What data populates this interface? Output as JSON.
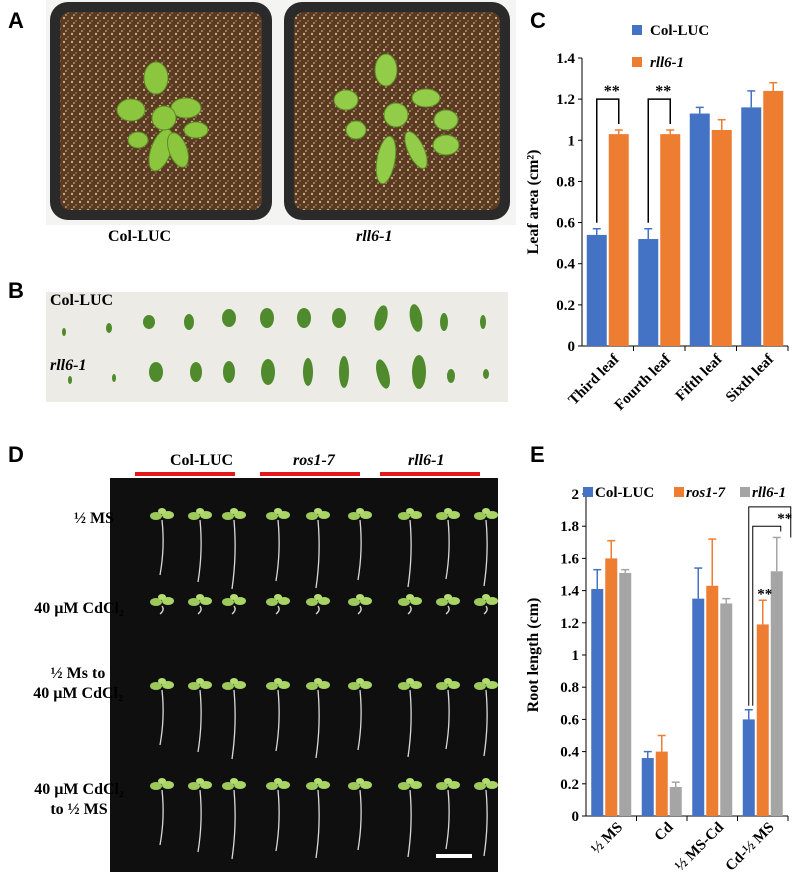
{
  "figure": {
    "panels": {
      "A": "A",
      "B": "B",
      "C": "C",
      "D": "D",
      "E": "E"
    },
    "panel_a": {
      "labels": [
        "Col-LUC",
        "rll6-1"
      ]
    },
    "panel_b": {
      "row_labels": [
        "Col-LUC",
        "rll6-1"
      ]
    },
    "panel_d": {
      "column_groups": [
        "Col-LUC",
        "ros1-7",
        "rll6-1"
      ],
      "row_labels": [
        [
          "½ MS"
        ],
        [
          "40 µM CdCl₂"
        ],
        [
          "½ Ms to",
          "40 µM CdCl₂"
        ],
        [
          "40 µM CdCl₂",
          "to ½ MS"
        ]
      ]
    }
  },
  "chart_data": [
    {
      "panel": "C",
      "type": "bar",
      "categories": [
        "Third leaf",
        "Fourth leaf",
        "Fifth leaf",
        "Sixth leaf"
      ],
      "series": [
        {
          "name": "Col-LUC",
          "color": "#4472c4",
          "values": [
            0.54,
            0.52,
            1.13,
            1.16
          ],
          "errors": [
            0.03,
            0.05,
            0.03,
            0.08
          ]
        },
        {
          "name": "rll6-1",
          "color": "#ed7d31",
          "values": [
            1.03,
            1.03,
            1.05,
            1.24
          ],
          "errors": [
            0.02,
            0.02,
            0.05,
            0.04
          ]
        }
      ],
      "ylabel": "Leaf area (cm²)",
      "ylim": [
        0,
        1.4
      ],
      "yticks": [
        "0",
        "0.2",
        "0.4",
        "0.6",
        "0.8",
        "1",
        "1.2",
        "1.4"
      ],
      "legend": "top-right",
      "annotations": [
        {
          "category": "Third leaf",
          "text": "**"
        },
        {
          "category": "Fourth leaf",
          "text": "**"
        }
      ]
    },
    {
      "panel": "E",
      "type": "bar",
      "categories": [
        "½ MS",
        "Cd",
        "½ MS-Cd",
        "Cd-½ MS"
      ],
      "series": [
        {
          "name": "Col-LUC",
          "color": "#4472c4",
          "values": [
            1.41,
            0.36,
            1.35,
            0.6
          ],
          "errors": [
            0.12,
            0.04,
            0.19,
            0.06
          ]
        },
        {
          "name": "ros1-7",
          "color": "#ed7d31",
          "values": [
            1.6,
            0.4,
            1.43,
            1.19
          ],
          "errors": [
            0.11,
            0.1,
            0.29,
            0.15
          ]
        },
        {
          "name": "rll6-1",
          "color": "#a5a5a5",
          "values": [
            1.51,
            0.18,
            1.32,
            1.52
          ],
          "errors": [
            0.02,
            0.03,
            0.03,
            0.21
          ]
        }
      ],
      "ylabel": "Root length (cm)",
      "ylim": [
        0,
        2
      ],
      "yticks": [
        "0",
        "0.2",
        "0.4",
        "0.6",
        "0.8",
        "1",
        "1.2",
        "1.4",
        "1.6",
        "1.8",
        "2"
      ],
      "legend": "top",
      "annotations": [
        {
          "category": "Cd-½ MS",
          "series": "ros1-7",
          "text": "**"
        },
        {
          "category": "Cd-½ MS",
          "series": "rll6-1",
          "text": "**"
        }
      ]
    }
  ]
}
